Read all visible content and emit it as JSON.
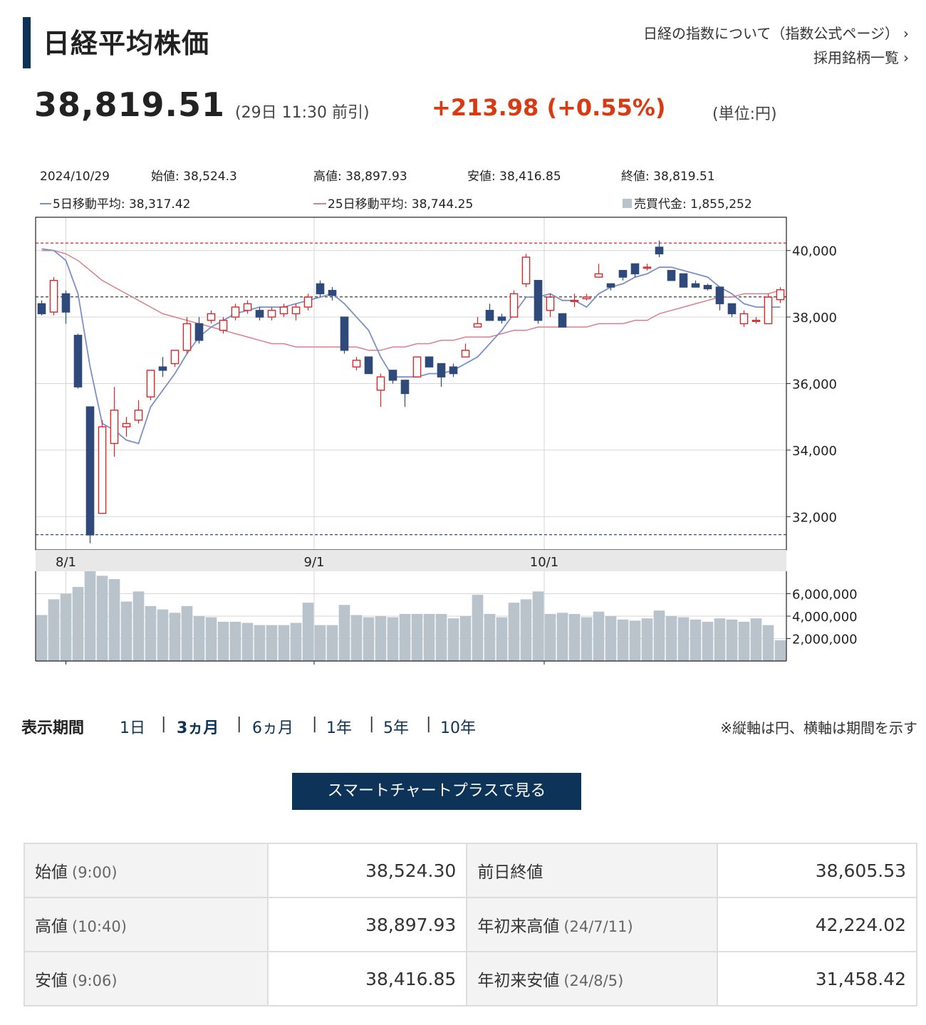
{
  "header": {
    "title": "日経平均株価",
    "link_index_about": "日経の指数について（指数公式ページ）",
    "link_constituents": "採用銘柄一覧",
    "price": "38,819.51",
    "price_time": "(29日 11:30 前引)",
    "change": "+213.98 (+0.55%)",
    "unit": "(単位:円)"
  },
  "info": {
    "date": "2024/10/29",
    "open": "始値: 38,524.3",
    "high": "高値: 38,897.93",
    "low": "安値: 38,416.85",
    "close": "終値: 38,819.51",
    "ma5": "5日移動平均: 38,317.42",
    "ma25": "25日移動平均: 38,744.25",
    "turnover": "売買代金: 1,855,252"
  },
  "colors": {
    "up": "#d62828",
    "down": "#2f4a7a",
    "ma5": "#7b90c8",
    "ma25": "#d98088",
    "volume": "#b8c3cc",
    "accent": "#0d3358",
    "change": "#d83a12"
  },
  "chart_data": {
    "type": "candlestick",
    "ylim": [
      31000,
      41000
    ],
    "yticks": [
      "40,000",
      "38,000",
      "36,000",
      "34,000",
      "32,000"
    ],
    "ytick_values": [
      40000,
      38000,
      36000,
      34000,
      32000
    ],
    "xlabels": [
      "8/1",
      "9/1",
      "10/1"
    ],
    "xlabel_index": [
      2.5,
      23,
      42
    ],
    "ref_high": 40224,
    "ref_low": 31458,
    "ref_last": 38606,
    "candles": [
      {
        "o": 38400,
        "h": 38500,
        "l": 38050,
        "c": 38100
      },
      {
        "o": 38150,
        "h": 39200,
        "l": 38050,
        "c": 39100
      },
      {
        "o": 38700,
        "h": 38800,
        "l": 37800,
        "c": 38150
      },
      {
        "o": 37450,
        "h": 37500,
        "l": 35850,
        "c": 35900
      },
      {
        "o": 35300,
        "h": 35300,
        "l": 31200,
        "c": 31450
      },
      {
        "o": 32100,
        "h": 34900,
        "l": 32100,
        "c": 34700
      },
      {
        "o": 34200,
        "h": 35900,
        "l": 33800,
        "c": 35200
      },
      {
        "o": 34700,
        "h": 35000,
        "l": 34400,
        "c": 34800
      },
      {
        "o": 34900,
        "h": 35500,
        "l": 34800,
        "c": 35200
      },
      {
        "o": 35600,
        "h": 36400,
        "l": 35500,
        "c": 36400
      },
      {
        "o": 36500,
        "h": 36800,
        "l": 36200,
        "c": 36400
      },
      {
        "o": 36600,
        "h": 37000,
        "l": 36500,
        "c": 37000
      },
      {
        "o": 37000,
        "h": 38000,
        "l": 36900,
        "c": 37800
      },
      {
        "o": 37800,
        "h": 38000,
        "l": 37200,
        "c": 37300
      },
      {
        "o": 37900,
        "h": 38200,
        "l": 37800,
        "c": 38100
      },
      {
        "o": 37600,
        "h": 38000,
        "l": 37500,
        "c": 37900
      },
      {
        "o": 38000,
        "h": 38400,
        "l": 37900,
        "c": 38300
      },
      {
        "o": 38200,
        "h": 38500,
        "l": 38100,
        "c": 38400
      },
      {
        "o": 38200,
        "h": 38300,
        "l": 37900,
        "c": 38000
      },
      {
        "o": 38000,
        "h": 38300,
        "l": 37900,
        "c": 38200
      },
      {
        "o": 38100,
        "h": 38400,
        "l": 38000,
        "c": 38300
      },
      {
        "o": 38100,
        "h": 38400,
        "l": 37900,
        "c": 38300
      },
      {
        "o": 38300,
        "h": 38700,
        "l": 38200,
        "c": 38600
      },
      {
        "o": 39000,
        "h": 39100,
        "l": 38600,
        "c": 38700
      },
      {
        "o": 38800,
        "h": 38900,
        "l": 38500,
        "c": 38650
      },
      {
        "o": 38000,
        "h": 38000,
        "l": 36900,
        "c": 37000
      },
      {
        "o": 36500,
        "h": 36800,
        "l": 36400,
        "c": 36700
      },
      {
        "o": 36800,
        "h": 36800,
        "l": 36300,
        "c": 36300
      },
      {
        "o": 35800,
        "h": 36300,
        "l": 35300,
        "c": 36200
      },
      {
        "o": 36400,
        "h": 36400,
        "l": 36000,
        "c": 36100
      },
      {
        "o": 36100,
        "h": 36100,
        "l": 35300,
        "c": 35700
      },
      {
        "o": 36200,
        "h": 36800,
        "l": 36200,
        "c": 36800
      },
      {
        "o": 36800,
        "h": 36800,
        "l": 36500,
        "c": 36500
      },
      {
        "o": 36600,
        "h": 36600,
        "l": 35900,
        "c": 36200
      },
      {
        "o": 36500,
        "h": 36600,
        "l": 36200,
        "c": 36300
      },
      {
        "o": 36800,
        "h": 37200,
        "l": 36800,
        "c": 37000
      },
      {
        "o": 37700,
        "h": 38000,
        "l": 37700,
        "c": 37800
      },
      {
        "o": 38200,
        "h": 38400,
        "l": 37900,
        "c": 37900
      },
      {
        "o": 38000,
        "h": 38100,
        "l": 37800,
        "c": 37900
      },
      {
        "o": 38000,
        "h": 38800,
        "l": 38000,
        "c": 38700
      },
      {
        "o": 39000,
        "h": 39900,
        "l": 38900,
        "c": 39800
      },
      {
        "o": 39100,
        "h": 39100,
        "l": 37800,
        "c": 37900
      },
      {
        "o": 38200,
        "h": 38700,
        "l": 38000,
        "c": 38600
      },
      {
        "o": 38100,
        "h": 38100,
        "l": 37700,
        "c": 37700
      },
      {
        "o": 38500,
        "h": 38700,
        "l": 38300,
        "c": 38500
      },
      {
        "o": 38550,
        "h": 38700,
        "l": 38500,
        "c": 38600
      },
      {
        "o": 39200,
        "h": 39600,
        "l": 39200,
        "c": 39300
      },
      {
        "o": 39000,
        "h": 39000,
        "l": 38800,
        "c": 38900
      },
      {
        "o": 39400,
        "h": 39400,
        "l": 39100,
        "c": 39200
      },
      {
        "o": 39600,
        "h": 39600,
        "l": 39200,
        "c": 39300
      },
      {
        "o": 39500,
        "h": 39600,
        "l": 39400,
        "c": 39500
      },
      {
        "o": 40100,
        "h": 40300,
        "l": 39800,
        "c": 39900
      },
      {
        "o": 39400,
        "h": 39400,
        "l": 39100,
        "c": 39100
      },
      {
        "o": 39300,
        "h": 39300,
        "l": 38900,
        "c": 38900
      },
      {
        "o": 39000,
        "h": 39100,
        "l": 38900,
        "c": 38900
      },
      {
        "o": 38950,
        "h": 39000,
        "l": 38800,
        "c": 38850
      },
      {
        "o": 38900,
        "h": 38900,
        "l": 38200,
        "c": 38400
      },
      {
        "o": 38400,
        "h": 38400,
        "l": 38000,
        "c": 38100
      },
      {
        "o": 37800,
        "h": 38200,
        "l": 37700,
        "c": 38100
      },
      {
        "o": 37900,
        "h": 38000,
        "l": 37800,
        "c": 37900
      },
      {
        "o": 37800,
        "h": 38700,
        "l": 37800,
        "c": 38600
      },
      {
        "o": 38524,
        "h": 38898,
        "l": 38417,
        "c": 38820
      }
    ],
    "ma5": [
      40050,
      40000,
      39700,
      38700,
      36500,
      34800,
      34600,
      34300,
      34200,
      35300,
      35800,
      36300,
      36900,
      37400,
      37700,
      37900,
      38100,
      38200,
      38300,
      38300,
      38300,
      38400,
      38500,
      38600,
      38700,
      38400,
      38000,
      37600,
      36800,
      36200,
      36200,
      36200,
      36300,
      36300,
      36400,
      36600,
      36800,
      37200,
      37600,
      38100,
      38600,
      38600,
      38700,
      38500,
      38500,
      38300,
      38700,
      38900,
      39000,
      39200,
      39300,
      39500,
      39500,
      39400,
      39300,
      39200,
      38900,
      38700,
      38400,
      38300,
      38300,
      38300
    ],
    "ma25": [
      40000,
      40000,
      39900,
      39700,
      39400,
      39100,
      38900,
      38700,
      38500,
      38300,
      38100,
      38000,
      37900,
      37800,
      37700,
      37600,
      37500,
      37400,
      37300,
      37200,
      37200,
      37100,
      37100,
      37100,
      37100,
      37100,
      37100,
      37000,
      37000,
      37100,
      37100,
      37200,
      37200,
      37300,
      37300,
      37400,
      37400,
      37400,
      37500,
      37600,
      37600,
      37700,
      37700,
      37700,
      37700,
      37700,
      37800,
      37800,
      37800,
      37900,
      37900,
      38100,
      38200,
      38300,
      38400,
      38500,
      38600,
      38600,
      38700,
      38700,
      38700,
      38800
    ],
    "volume_ylim": [
      0,
      8000000
    ],
    "volume_ticks": [
      "6,000,000",
      "4,000,000",
      "2,000,000"
    ],
    "volume_tick_values": [
      6000000,
      4000000,
      2000000
    ],
    "volume": [
      4100000,
      5500000,
      6000000,
      6600000,
      8000000,
      7600000,
      7300000,
      5300000,
      6200000,
      4900000,
      4600000,
      4300000,
      4900000,
      4000000,
      3900000,
      3500000,
      3500000,
      3400000,
      3200000,
      3200000,
      3200000,
      3400000,
      5200000,
      3200000,
      3200000,
      5000000,
      4100000,
      3900000,
      4000000,
      3900000,
      4200000,
      4200000,
      4200000,
      4200000,
      3800000,
      4000000,
      5900000,
      4200000,
      3900000,
      5200000,
      5500000,
      6200000,
      4200000,
      4300000,
      4200000,
      3900000,
      4400000,
      4000000,
      3700000,
      3600000,
      3800000,
      4500000,
      4000000,
      3900000,
      3700000,
      3500000,
      3800000,
      3700000,
      3500000,
      3800000,
      3200000,
      1855252
    ]
  },
  "period": {
    "label": "表示期間",
    "options": [
      "1日",
      "3ヵ月",
      "6ヵ月",
      "1年",
      "5年",
      "10年"
    ],
    "selected": "3ヵ月",
    "note": "※縦軸は円、横軸は期間を示す"
  },
  "button": {
    "label": "スマートチャートプラスで見る"
  },
  "summary": {
    "rows": [
      {
        "k1": "始値",
        "s1": "(9:00)",
        "v1": "38,524.30",
        "k2": "前日終値",
        "s2": "",
        "v2": "38,605.53"
      },
      {
        "k1": "高値",
        "s1": "(10:40)",
        "v1": "38,897.93",
        "k2": "年初来高値",
        "s2": "(24/7/11)",
        "v2": "42,224.02"
      },
      {
        "k1": "安値",
        "s1": "(9:06)",
        "v1": "38,416.85",
        "k2": "年初来安値",
        "s2": "(24/8/5)",
        "v2": "31,458.42"
      }
    ]
  }
}
